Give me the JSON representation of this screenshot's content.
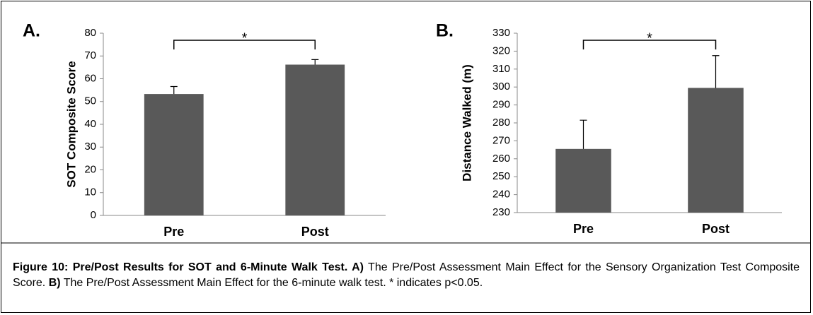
{
  "chart_data": [
    {
      "type": "bar",
      "panel": "A.",
      "ylabel": "SOT Composite Score",
      "categories": [
        "Pre",
        "Post"
      ],
      "values": [
        53.3,
        66.2
      ],
      "errors": [
        3.3,
        2.2
      ],
      "color": "#595959",
      "ylim": [
        0,
        80
      ],
      "yticks": [
        0,
        10,
        20,
        30,
        40,
        50,
        60,
        70,
        80
      ],
      "annotation": "*"
    },
    {
      "type": "bar",
      "panel": "B.",
      "ylabel": "Distance Walked (m)",
      "categories": [
        "Pre",
        "Post"
      ],
      "values": [
        265.5,
        299.5
      ],
      "errors": [
        16,
        18
      ],
      "color": "#595959",
      "ylim": [
        230,
        330
      ],
      "yticks": [
        230,
        240,
        250,
        260,
        270,
        280,
        290,
        300,
        310,
        320,
        330
      ],
      "annotation": "*"
    }
  ],
  "caption": [
    {
      "text": "Figure 10: Pre/Post Results for SOT and 6-Minute Walk Test. A)",
      "bold": true
    },
    {
      "text": " The Pre/Post Assessment Main Effect for the Sensory Organization Test Composite Score. ",
      "bold": false
    },
    {
      "text": "B)",
      "bold": true
    },
    {
      "text": " The Pre/Post Assessment Main Effect for the 6-minute walk test. * indicates p<0.05.",
      "bold": false
    }
  ]
}
